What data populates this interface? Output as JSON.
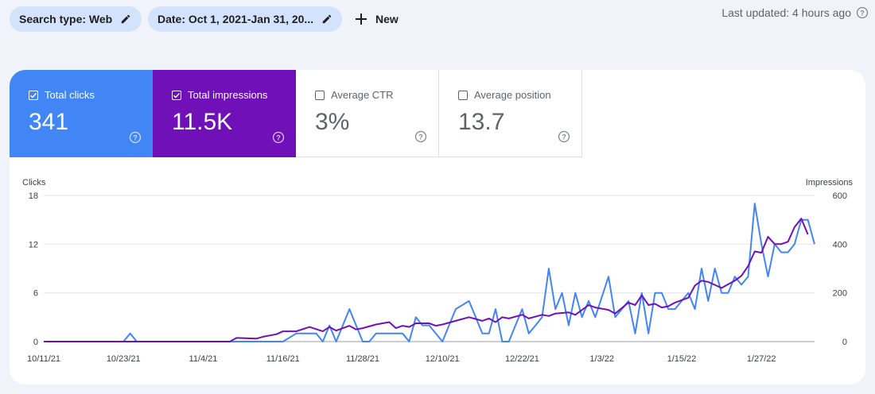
{
  "toolbar": {
    "chips": [
      {
        "label": "Search type: Web"
      },
      {
        "label": "Date: Oct 1, 2021-Jan 31, 20..."
      }
    ],
    "new_label": "New",
    "last_updated": "Last updated: 4 hours ago"
  },
  "metrics": {
    "clicks": {
      "label": "Total clicks",
      "value": "341",
      "checked": true,
      "color": "#4285f4"
    },
    "impressions": {
      "label": "Total impressions",
      "value": "11.5K",
      "checked": true,
      "color": "#7010b8"
    },
    "ctr": {
      "label": "Average CTR",
      "value": "3%",
      "checked": false
    },
    "position": {
      "label": "Average position",
      "value": "13.7",
      "checked": false
    }
  },
  "chart_data": {
    "type": "line",
    "y_left_label": "Clicks",
    "y_right_label": "Impressions",
    "y_left_ticks": [
      "18",
      "12",
      "6",
      "0"
    ],
    "y_right_ticks": [
      "600",
      "400",
      "200",
      "0"
    ],
    "y_left_range": [
      0,
      18
    ],
    "y_right_range": [
      0,
      600
    ],
    "x_start": "10/11/21",
    "x_end": "1/31/22",
    "x_tick_labels": [
      "10/11/21",
      "10/23/21",
      "11/4/21",
      "11/16/21",
      "11/28/21",
      "12/10/21",
      "12/22/21",
      "1/3/22",
      "1/15/22",
      "1/27/22"
    ],
    "grid": true,
    "series": [
      {
        "name": "Clicks",
        "color": "#4285f4",
        "axis": "left",
        "points": [
          [
            "10/11/21",
            0
          ],
          [
            "10/23/21",
            0
          ],
          [
            "10/24/21",
            1
          ],
          [
            "10/25/21",
            0
          ],
          [
            "11/4/21",
            0
          ],
          [
            "11/16/21",
            0
          ],
          [
            "11/18/21",
            1
          ],
          [
            "11/21/21",
            1
          ],
          [
            "11/22/21",
            0
          ],
          [
            "11/23/21",
            2
          ],
          [
            "11/24/21",
            0
          ],
          [
            "11/26/21",
            4
          ],
          [
            "11/28/21",
            0
          ],
          [
            "11/29/21",
            0
          ],
          [
            "11/30/21",
            1
          ],
          [
            "12/4/21",
            1
          ],
          [
            "12/5/21",
            0
          ],
          [
            "12/6/21",
            3
          ],
          [
            "12/7/21",
            2
          ],
          [
            "12/8/21",
            2
          ],
          [
            "12/9/21",
            1
          ],
          [
            "12/10/21",
            0
          ],
          [
            "12/12/21",
            4
          ],
          [
            "12/14/21",
            5
          ],
          [
            "12/15/21",
            3
          ],
          [
            "12/16/21",
            1
          ],
          [
            "12/17/21",
            1
          ],
          [
            "12/18/21",
            4
          ],
          [
            "12/19/21",
            0
          ],
          [
            "12/20/21",
            0
          ],
          [
            "12/22/21",
            4
          ],
          [
            "12/23/21",
            1
          ],
          [
            "12/24/21",
            2
          ],
          [
            "12/25/21",
            3
          ],
          [
            "12/26/21",
            9
          ],
          [
            "12/27/21",
            4
          ],
          [
            "12/28/21",
            6
          ],
          [
            "12/29/21",
            2
          ],
          [
            "12/30/21",
            6
          ],
          [
            "12/31/21",
            3
          ],
          [
            "1/1/22",
            5
          ],
          [
            "1/2/22",
            3
          ],
          [
            "1/4/22",
            8
          ],
          [
            "1/5/22",
            3
          ],
          [
            "1/6/22",
            4
          ],
          [
            "1/7/22",
            5
          ],
          [
            "1/8/22",
            1
          ],
          [
            "1/9/22",
            6
          ],
          [
            "1/10/22",
            1
          ],
          [
            "1/11/22",
            6
          ],
          [
            "1/12/22",
            6
          ],
          [
            "1/13/22",
            4
          ],
          [
            "1/14/22",
            4
          ],
          [
            "1/15/22",
            5
          ],
          [
            "1/16/22",
            6
          ],
          [
            "1/17/22",
            4
          ],
          [
            "1/18/22",
            9
          ],
          [
            "1/19/22",
            5
          ],
          [
            "1/20/22",
            9
          ],
          [
            "1/21/22",
            6
          ],
          [
            "1/22/22",
            6
          ],
          [
            "1/23/22",
            8
          ],
          [
            "1/24/22",
            7
          ],
          [
            "1/25/22",
            8
          ],
          [
            "1/26/22",
            17
          ],
          [
            "1/27/22",
            12
          ],
          [
            "1/28/22",
            8
          ],
          [
            "1/29/22",
            12
          ],
          [
            "1/30/22",
            11
          ],
          [
            "1/31/22",
            11
          ],
          [
            "2/1/22",
            12
          ],
          [
            "2/2/22",
            15
          ],
          [
            "2/3/22",
            15
          ],
          [
            "2/4/22",
            12
          ]
        ]
      },
      {
        "name": "Impressions",
        "color": "#7010b8",
        "axis": "right",
        "points": [
          [
            "10/11/21",
            0
          ],
          [
            "10/23/21",
            0
          ],
          [
            "11/4/21",
            0
          ],
          [
            "11/8/21",
            0
          ],
          [
            "11/9/21",
            15
          ],
          [
            "11/12/21",
            12
          ],
          [
            "11/13/21",
            20
          ],
          [
            "11/15/21",
            30
          ],
          [
            "11/16/21",
            42
          ],
          [
            "11/18/21",
            42
          ],
          [
            "11/20/21",
            60
          ],
          [
            "11/22/21",
            42
          ],
          [
            "11/23/21",
            60
          ],
          [
            "11/24/21",
            45
          ],
          [
            "11/26/21",
            65
          ],
          [
            "11/27/21",
            50
          ],
          [
            "11/28/21",
            55
          ],
          [
            "11/30/21",
            70
          ],
          [
            "12/2/21",
            80
          ],
          [
            "12/3/21",
            55
          ],
          [
            "12/4/21",
            65
          ],
          [
            "12/5/21",
            60
          ],
          [
            "12/6/21",
            75
          ],
          [
            "12/8/21",
            75
          ],
          [
            "12/9/21",
            65
          ],
          [
            "12/10/21",
            70
          ],
          [
            "12/12/21",
            85
          ],
          [
            "12/14/21",
            100
          ],
          [
            "12/16/21",
            85
          ],
          [
            "12/17/21",
            95
          ],
          [
            "12/18/21",
            80
          ],
          [
            "12/19/21",
            100
          ],
          [
            "12/20/21",
            95
          ],
          [
            "12/22/21",
            110
          ],
          [
            "12/23/21",
            95
          ],
          [
            "12/25/21",
            110
          ],
          [
            "12/26/21",
            105
          ],
          [
            "12/27/21",
            115
          ],
          [
            "12/29/21",
            120
          ],
          [
            "12/30/21",
            110
          ],
          [
            "1/1/22",
            150
          ],
          [
            "1/2/22",
            140
          ],
          [
            "1/4/22",
            130
          ],
          [
            "1/5/22",
            115
          ],
          [
            "1/7/22",
            160
          ],
          [
            "1/8/22",
            150
          ],
          [
            "1/9/22",
            190
          ],
          [
            "1/10/22",
            150
          ],
          [
            "1/11/22",
            155
          ],
          [
            "1/12/22",
            140
          ],
          [
            "1/13/22",
            145
          ],
          [
            "1/14/22",
            160
          ],
          [
            "1/16/22",
            180
          ],
          [
            "1/17/22",
            230
          ],
          [
            "1/18/22",
            250
          ],
          [
            "1/19/22",
            245
          ],
          [
            "1/21/22",
            220
          ],
          [
            "1/23/22",
            250
          ],
          [
            "1/24/22",
            270
          ],
          [
            "1/25/22",
            310
          ],
          [
            "1/26/22",
            370
          ],
          [
            "1/27/22",
            365
          ],
          [
            "1/28/22",
            430
          ],
          [
            "1/29/22",
            400
          ],
          [
            "1/30/22",
            400
          ],
          [
            "1/31/22",
            410
          ],
          [
            "2/1/22",
            470
          ],
          [
            "2/2/22",
            505
          ],
          [
            "2/3/22",
            440
          ]
        ]
      }
    ]
  }
}
